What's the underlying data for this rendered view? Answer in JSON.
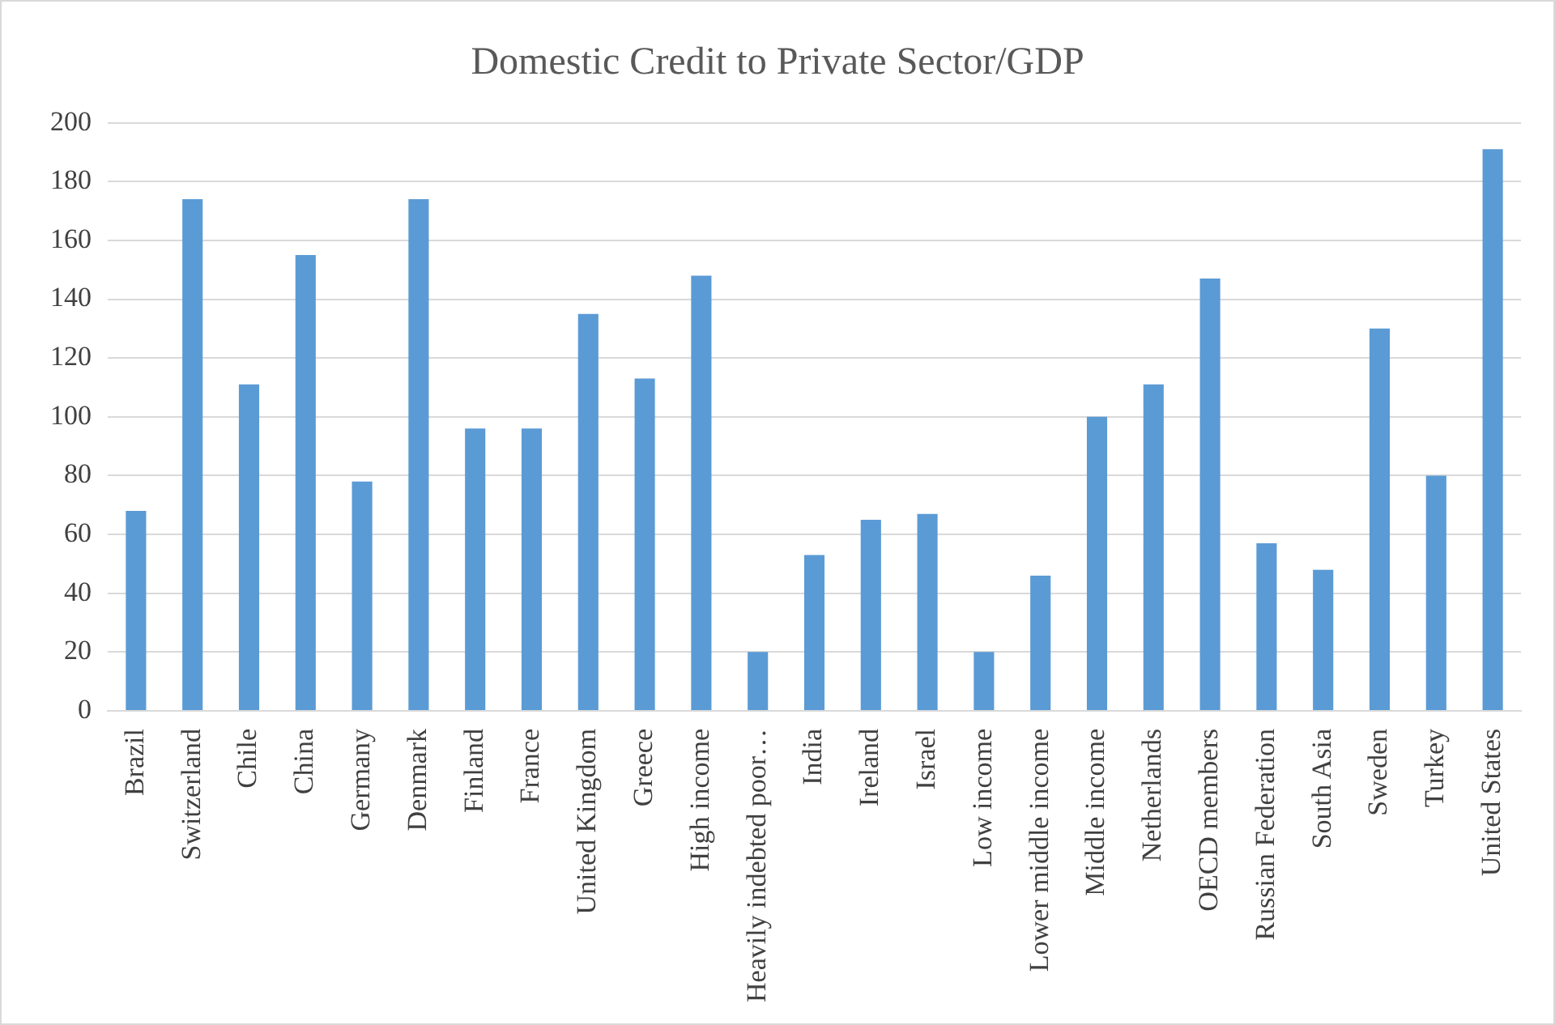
{
  "chart_data": {
    "type": "bar",
    "title": "Domestic Credit to Private Sector/GDP",
    "categories": [
      "Brazil",
      "Switzerland",
      "Chile",
      "China",
      "Germany",
      "Denmark",
      "Finland",
      "France",
      "United Kingdom",
      "Greece",
      "High income",
      "Heavily indebted poor…",
      "India",
      "Ireland",
      "Israel",
      "Low income",
      "Lower middle income",
      "Middle income",
      "Netherlands",
      "OECD members",
      "Russian Federation",
      "South Asia",
      "Sweden",
      "Turkey",
      "United States"
    ],
    "values": [
      68,
      174,
      111,
      155,
      78,
      174,
      96,
      96,
      135,
      113,
      148,
      20,
      53,
      65,
      67,
      20,
      46,
      100,
      111,
      147,
      57,
      48,
      130,
      80,
      191
    ],
    "color": "#5b9bd5",
    "ylim": [
      0,
      200
    ],
    "yticks": [
      0,
      20,
      40,
      60,
      80,
      100,
      120,
      140,
      160,
      180,
      200
    ],
    "grid": "y"
  }
}
